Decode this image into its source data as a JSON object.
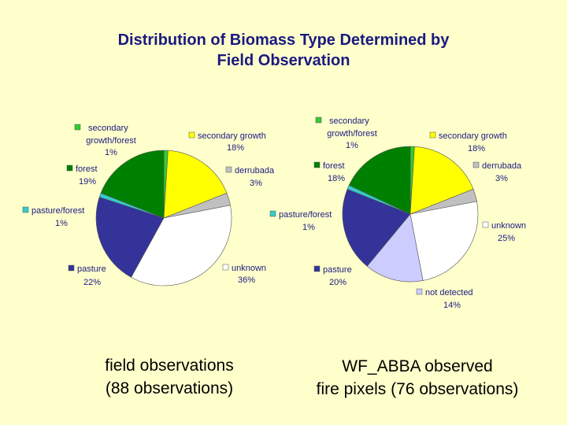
{
  "title_line1": "Distribution of Biomass Type Determined by",
  "title_line2": "Field Observation",
  "caption1_line1": "field observations",
  "caption1_line2": "(88 observations)",
  "caption2_line1": "WF_ABBA observed",
  "caption2_line2": "fire pixels (76 observations)",
  "chart_data": [
    {
      "type": "pie",
      "title": "",
      "slices": [
        {
          "label": "secondary growth/forest",
          "value": 1,
          "percent_label": "1%",
          "color": "#33CC33"
        },
        {
          "label": "secondary growth",
          "value": 18,
          "percent_label": "18%",
          "color": "#FFFF00"
        },
        {
          "label": "derrubada",
          "value": 3,
          "percent_label": "3%",
          "color": "#C0C0C0"
        },
        {
          "label": "unknown",
          "value": 36,
          "percent_label": "36%",
          "color": "#FFFFFF"
        },
        {
          "label": "pasture",
          "value": 22,
          "percent_label": "22%",
          "color": "#333399"
        },
        {
          "label": "pasture/forest",
          "value": 1,
          "percent_label": "1%",
          "color": "#33CCCC"
        },
        {
          "label": "forest",
          "value": 19,
          "percent_label": "19%",
          "color": "#008000"
        }
      ]
    },
    {
      "type": "pie",
      "title": "",
      "slices": [
        {
          "label": "secondary growth/forest",
          "value": 1,
          "percent_label": "1%",
          "color": "#33CC33"
        },
        {
          "label": "secondary growth",
          "value": 18,
          "percent_label": "18%",
          "color": "#FFFF00"
        },
        {
          "label": "derrubada",
          "value": 3,
          "percent_label": "3%",
          "color": "#C0C0C0"
        },
        {
          "label": "unknown",
          "value": 25,
          "percent_label": "25%",
          "color": "#FFFFFF"
        },
        {
          "label": "not detected",
          "value": 14,
          "percent_label": "14%",
          "color": "#CCCCFF"
        },
        {
          "label": "pasture",
          "value": 20,
          "percent_label": "20%",
          "color": "#333399"
        },
        {
          "label": "pasture/forest",
          "value": 1,
          "percent_label": "1%",
          "color": "#33CCCC"
        },
        {
          "label": "forest",
          "value": 18,
          "percent_label": "18%",
          "color": "#008000"
        }
      ]
    }
  ]
}
